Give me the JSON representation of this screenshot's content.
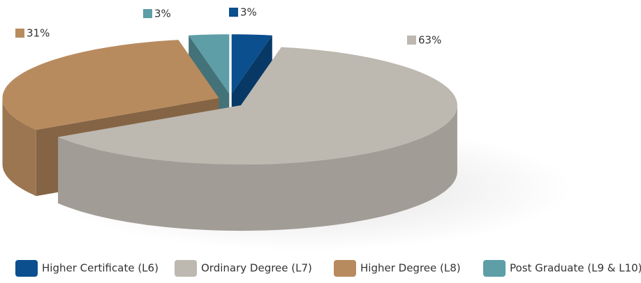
{
  "chart_data": {
    "type": "pie",
    "categories": [
      "Higher Certificate (L6)",
      "Ordinary Degree (L7)",
      "Higher Degree (L8)",
      "Post Graduate (L9 & L10)"
    ],
    "values": [
      3,
      63,
      31,
      3
    ],
    "value_labels": [
      "3%",
      "63%",
      "31%",
      "3%"
    ],
    "colors": [
      "#0b4f8e",
      "#bdb8b0",
      "#b88b5f",
      "#5d9ea7"
    ],
    "legend": "bottom"
  }
}
